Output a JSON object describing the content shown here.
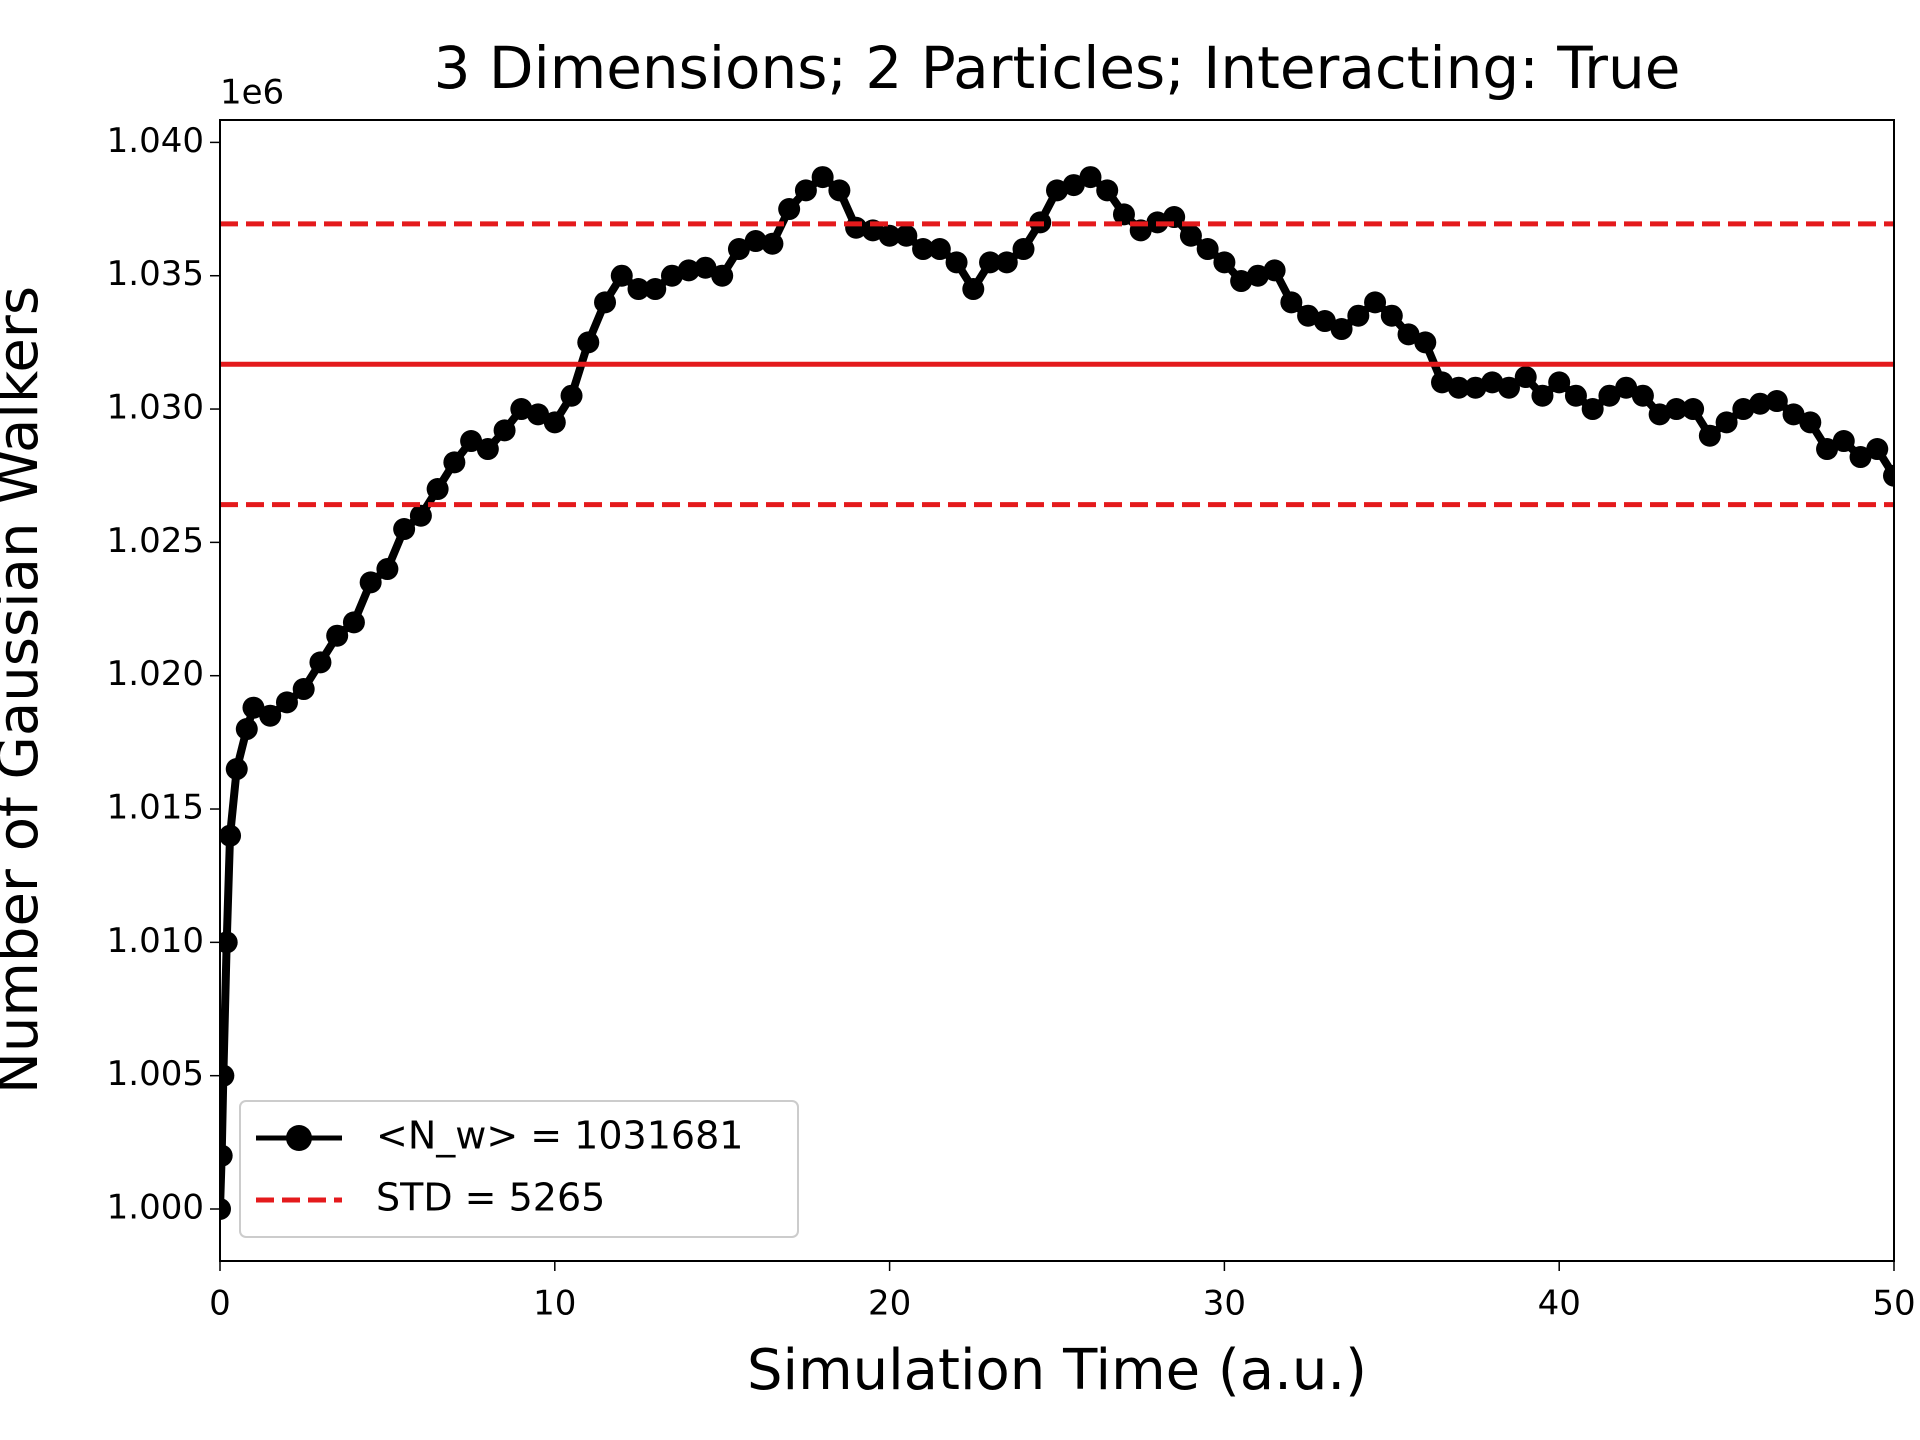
{
  "chart_data": {
    "type": "line",
    "title": "3 Dimensions; 2 Particles; Interacting: True",
    "x_label": "Simulation Time (a.u.)",
    "y_label": "Number of Gaussian Walkers",
    "y_offset_label": "1e6",
    "xlim": [
      0,
      50
    ],
    "ylim": [
      998050,
      1040840
    ],
    "xticks": [
      0,
      10,
      20,
      30,
      40,
      50
    ],
    "yticks": [
      {
        "value": 1000000,
        "label": "1.000"
      },
      {
        "value": 1005000,
        "label": "1.005"
      },
      {
        "value": 1010000,
        "label": "1.010"
      },
      {
        "value": 1015000,
        "label": "1.015"
      },
      {
        "value": 1020000,
        "label": "1.020"
      },
      {
        "value": 1025000,
        "label": "1.025"
      },
      {
        "value": 1030000,
        "label": "1.030"
      },
      {
        "value": 1035000,
        "label": "1.035"
      },
      {
        "value": 1040000,
        "label": "1.040"
      }
    ],
    "legend_position": "lower left",
    "x": [
      0,
      0.05,
      0.1,
      0.2,
      0.3,
      0.5,
      0.8,
      1,
      1.5,
      2,
      2.5,
      3,
      3.5,
      4,
      4.5,
      5,
      5.5,
      6,
      6.5,
      7,
      7.5,
      8,
      8.5,
      9,
      9.5,
      10,
      10.5,
      11,
      11.5,
      12,
      12.5,
      13,
      13.5,
      14,
      14.5,
      15,
      15.5,
      16,
      16.5,
      17,
      17.5,
      18,
      18.5,
      19,
      19.5,
      20,
      20.5,
      21,
      21.5,
      22,
      22.5,
      23,
      23.5,
      24,
      24.5,
      25,
      25.5,
      26,
      26.5,
      27,
      27.5,
      28,
      28.5,
      29,
      29.5,
      30,
      30.5,
      31,
      31.5,
      32,
      32.5,
      33,
      33.5,
      34,
      34.5,
      35,
      35.5,
      36,
      36.5,
      37,
      37.5,
      38,
      38.5,
      39,
      39.5,
      40,
      40.5,
      41,
      41.5,
      42,
      42.5,
      43,
      43.5,
      44,
      44.5,
      45,
      45.5,
      46,
      46.5,
      47,
      47.5,
      48,
      48.5,
      49,
      49.5,
      50
    ],
    "series": [
      {
        "name": "<N_w> = 1031681",
        "color": "#000000",
        "values": [
          1000000,
          1002000,
          1005000,
          1010000,
          1014000,
          1016500,
          1018000,
          1018800,
          1018500,
          1019000,
          1019500,
          1020500,
          1021500,
          1022000,
          1023500,
          1024000,
          1025500,
          1026000,
          1027000,
          1028000,
          1028800,
          1028500,
          1029200,
          1030000,
          1029800,
          1029500,
          1030500,
          1032500,
          1034000,
          1035000,
          1034500,
          1034500,
          1035000,
          1035200,
          1035300,
          1035000,
          1036000,
          1036300,
          1036200,
          1037500,
          1038200,
          1038700,
          1038200,
          1036800,
          1036700,
          1036500,
          1036500,
          1036000,
          1036000,
          1035500,
          1034500,
          1035500,
          1035500,
          1036000,
          1037000,
          1038200,
          1038400,
          1038700,
          1038200,
          1037300,
          1036700,
          1037000,
          1037200,
          1036500,
          1036000,
          1035500,
          1034800,
          1035000,
          1035200,
          1034000,
          1033500,
          1033300,
          1033000,
          1033500,
          1034000,
          1033500,
          1032800,
          1032500,
          1031000,
          1030800,
          1030800,
          1031000,
          1030800,
          1031200,
          1030500,
          1031000,
          1030500,
          1030000,
          1030500,
          1030800,
          1030500,
          1029800,
          1030000,
          1030000,
          1029000,
          1029500,
          1030000,
          1030200,
          1030300,
          1029800,
          1029500,
          1028500,
          1028800,
          1028200,
          1028500,
          1027500
        ]
      }
    ],
    "reference_lines": [
      {
        "value": 1031681,
        "color": "#e41a1c",
        "style": "solid"
      },
      {
        "value": 1036946,
        "color": "#e41a1c",
        "style": "dashed",
        "name": "STD = 5265"
      },
      {
        "value": 1026416,
        "color": "#e41a1c",
        "style": "dashed"
      }
    ]
  }
}
